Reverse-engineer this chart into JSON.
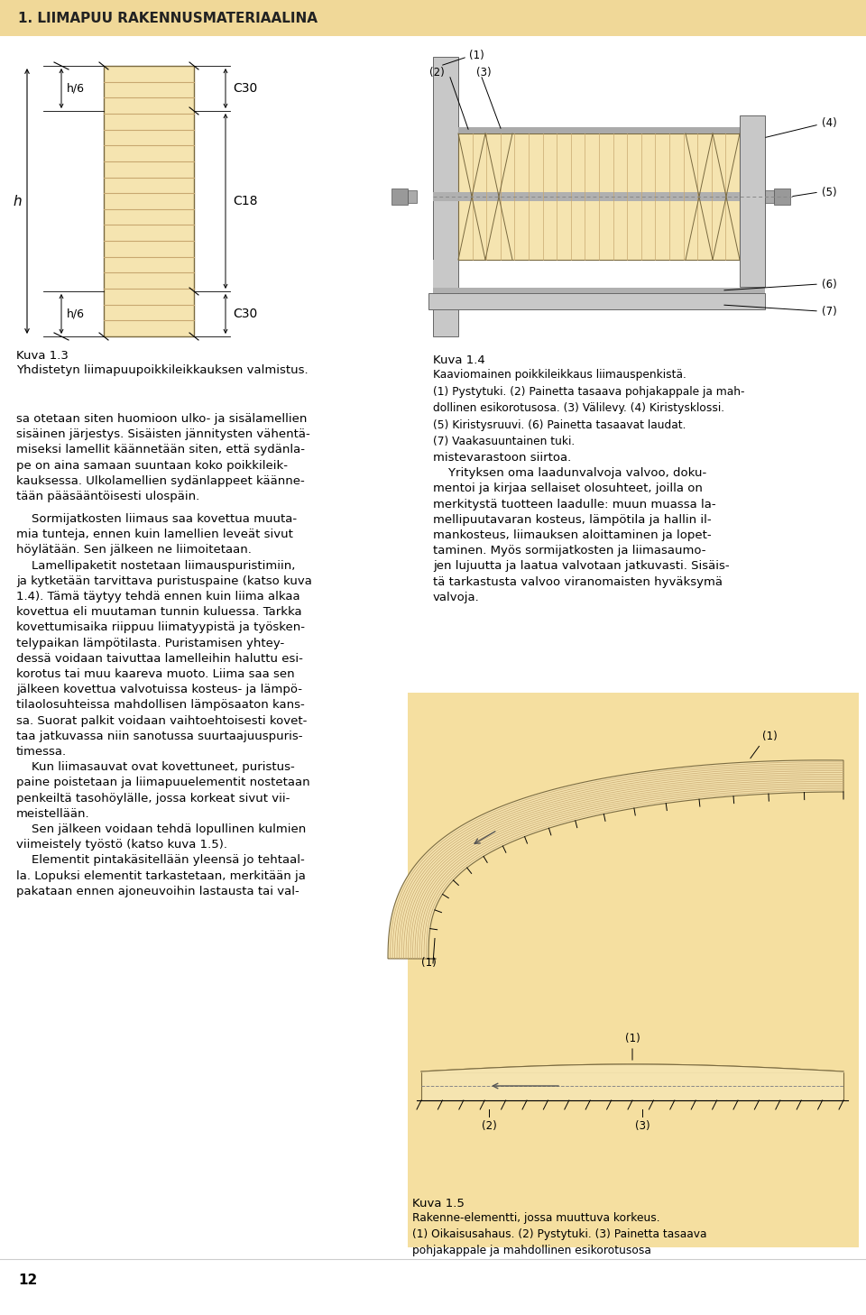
{
  "page_bg": "#ffffff",
  "header_bg": "#f0d898",
  "header_text": "1. LIIMAPUU RAKENNUSMATERIAALINA",
  "header_fontsize": 11,
  "wood_color": "#f5e4b0",
  "wood_line_color": "#c8a870",
  "fig5_bg": "#f5dfa0",
  "gray_col": "#b8b8b8",
  "gray_dark": "#888888",
  "fig1_caption_line1": "Kuva 1.3",
  "fig1_caption_line2": "Yhdistetyn liimapuupoikkileikkauksen valmistus.",
  "fig2_caption_title": "Kuva 1.4",
  "fig2_caption_body": "Kaaviomainen poikkileikkaus liimauspenkistä.\n(1) Pystytuki. (2) Painetta tasaava pohjakappale ja mah-\ndollinen esikorotusosa. (3) Välilevy. (4) Kiristysklossi.\n(5) Kiristysruuvi. (6) Painetta tasaavat laudat.\n(7) Vaakasuuntainen tuki.",
  "fig3_caption_title": "Kuva 1.5",
  "fig3_caption_body": "Rakenne-elementti, jossa muuttuva korkeus.\n(1) Oikaisusahaus. (2) Pystytuki. (3) Painetta tasaava\npohjakappale ja mahdollinen esikorotusosa",
  "body_text_left": "sa otetaan siten huomioon ulko- ja sisälamellien\nsisäinen järjestys. Sisäisten jännitysten vähentä-\nmiseksi lamellit käännetään siten, että sydänla-\npe on aina samaan suuntaan koko poikkileik-\nkauksessa. Ulkolamellien sydänlappeet käänne-\ntään pääsääntöisesti ulospäin.\n\n    Sormijatkosten liimaus saa kovettua muuta-\nmia tunteja, ennen kuin lamellien leveät sivut\nhöylätään. Sen jälkeen ne liimoitetaan.\n    Lamellipaketit nostetaan liimauspuristimiin,\nja kytketään tarvittava puristuspaine (katso kuva\n1.4). Tämä täytyy tehdä ennen kuin liima alkaa\nkovettua eli muutaman tunnin kuluessa. Tarkka\nkovettumisaika riippuu liimatyypistä ja työsken-\ntelypaikan lämpötilasta. Puristamisen yhtey-\ndessä voidaan taivuttaa lamelleihin haluttu esi-\nkorotus tai muu kaareva muoto. Liima saa sen\njälkeen kovettua valvotuissa kosteus- ja lämpö-\ntilaolosuhteissa mahdollisen lämpösaaton kans-\nsa. Suorat palkit voidaan vaihtoehtoisesti kovet-\ntaa jatkuvassa niin sanotussa suurtaajuuspuris-\ntimessa.\n    Kun liimasauvat ovat kovettuneet, puristus-\npaine poistetaan ja liimapuuelementit nostetaan\npenkeiltä tasohöylälle, jossa korkeat sivut vii-\nmeistellään.\n    Sen jälkeen voidaan tehdä lopullinen kulmien\nviimeistely työstö (katso kuva 1.5).\n    Elementit pintakäsitellään yleensä jo tehtaal-\nla. Lopuksi elementit tarkastetaan, merkitään ja\npakataan ennen ajoneuvoihin lastausta tai val-",
  "body_text_right": "mistevarastoon siirtoa.\n    Yrityksen oma laadunvalvoja valvoo, doku-\nmentoi ja kirjaa sellaiset olosuhteet, joilla on\nmerkitystä tuotteen laadulle: muun muassa la-\nmellipuutavaran kosteus, lämpötila ja hallin il-\nmankosteus, liimauksen aloittaminen ja lopet-\ntaminen. Myös sormijatkosten ja liimasaumo-\njen lujuutta ja laatua valvotaan jatkuvasti. Sisäis-\ntä tarkastusta valvoo viranomaisten hyväksymä\nvalvoja.",
  "page_number": "12"
}
